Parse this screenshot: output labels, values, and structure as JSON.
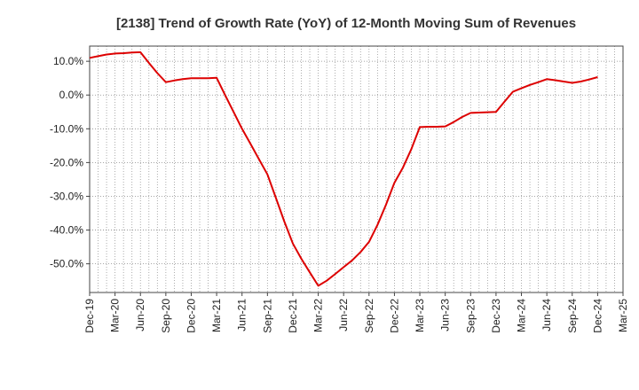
{
  "chart_data": {
    "type": "line",
    "title": "[2138]  Trend of Growth Rate (YoY) of 12-Month Moving Sum of Revenues",
    "xlabel": "",
    "ylabel": "",
    "x_tick_labels": [
      "Dec-19",
      "Mar-20",
      "Jun-20",
      "Sep-20",
      "Dec-20",
      "Mar-21",
      "Jun-21",
      "Sep-21",
      "Dec-21",
      "Mar-22",
      "Jun-22",
      "Sep-22",
      "Dec-22",
      "Mar-23",
      "Jun-23",
      "Sep-23",
      "Dec-23",
      "Mar-24",
      "Jun-24",
      "Sep-24",
      "Dec-24",
      "Mar-25"
    ],
    "y_tick_labels": [
      "10.0%",
      "0.0%",
      "-10.0%",
      "-20.0%",
      "-30.0%",
      "-40.0%",
      "-50.0%"
    ],
    "y_ticks": [
      10,
      0,
      -10,
      -20,
      -30,
      -40,
      -50
    ],
    "ylim": [
      -58.5,
      14.5
    ],
    "xlim_months": [
      "2019-12",
      "2025-03"
    ],
    "grid": true,
    "line_color": "#dd0000",
    "series": [
      {
        "points": [
          [
            "2019-12",
            11.0
          ],
          [
            "2020-01",
            11.5
          ],
          [
            "2020-02",
            12.0
          ],
          [
            "2020-03",
            12.3
          ],
          [
            "2020-04",
            12.4
          ],
          [
            "2020-05",
            12.6
          ],
          [
            "2020-06",
            12.7
          ],
          [
            "2020-07",
            9.5
          ],
          [
            "2020-08",
            6.5
          ],
          [
            "2020-09",
            3.8
          ],
          [
            "2020-10",
            4.3
          ],
          [
            "2020-11",
            4.7
          ],
          [
            "2020-12",
            5.0
          ],
          [
            "2021-01",
            5.0
          ],
          [
            "2021-02",
            5.0
          ],
          [
            "2021-03",
            5.1
          ],
          [
            "2021-04",
            0.0
          ],
          [
            "2021-05",
            -5.0
          ],
          [
            "2021-06",
            -10.0
          ],
          [
            "2021-07",
            -14.5
          ],
          [
            "2021-08",
            -19.0
          ],
          [
            "2021-09",
            -23.5
          ],
          [
            "2021-10",
            -30.5
          ],
          [
            "2021-11",
            -37.5
          ],
          [
            "2021-12",
            -44.0
          ],
          [
            "2022-01",
            -48.5
          ],
          [
            "2022-02",
            -52.5
          ],
          [
            "2022-03",
            -56.5
          ],
          [
            "2022-04",
            -55.0
          ],
          [
            "2022-05",
            -53.0
          ],
          [
            "2022-06",
            -51.0
          ],
          [
            "2022-07",
            -49.0
          ],
          [
            "2022-08",
            -46.5
          ],
          [
            "2022-09",
            -43.5
          ],
          [
            "2022-10",
            -38.5
          ],
          [
            "2022-11",
            -32.5
          ],
          [
            "2022-12",
            -26.0
          ],
          [
            "2023-01",
            -21.5
          ],
          [
            "2023-02",
            -16.0
          ],
          [
            "2023-03",
            -9.5
          ],
          [
            "2023-04",
            -9.4
          ],
          [
            "2023-05",
            -9.4
          ],
          [
            "2023-06",
            -9.3
          ],
          [
            "2023-07",
            -8.0
          ],
          [
            "2023-08",
            -6.5
          ],
          [
            "2023-09",
            -5.3
          ],
          [
            "2023-10",
            -5.2
          ],
          [
            "2023-11",
            -5.1
          ],
          [
            "2023-12",
            -5.0
          ],
          [
            "2024-01",
            -2.0
          ],
          [
            "2024-02",
            1.0
          ],
          [
            "2024-03",
            2.0
          ],
          [
            "2024-04",
            3.0
          ],
          [
            "2024-05",
            3.8
          ],
          [
            "2024-06",
            4.7
          ],
          [
            "2024-07",
            4.4
          ],
          [
            "2024-08",
            4.0
          ],
          [
            "2024-09",
            3.6
          ],
          [
            "2024-10",
            4.0
          ],
          [
            "2024-11",
            4.6
          ],
          [
            "2024-12",
            5.3
          ]
        ]
      }
    ]
  }
}
